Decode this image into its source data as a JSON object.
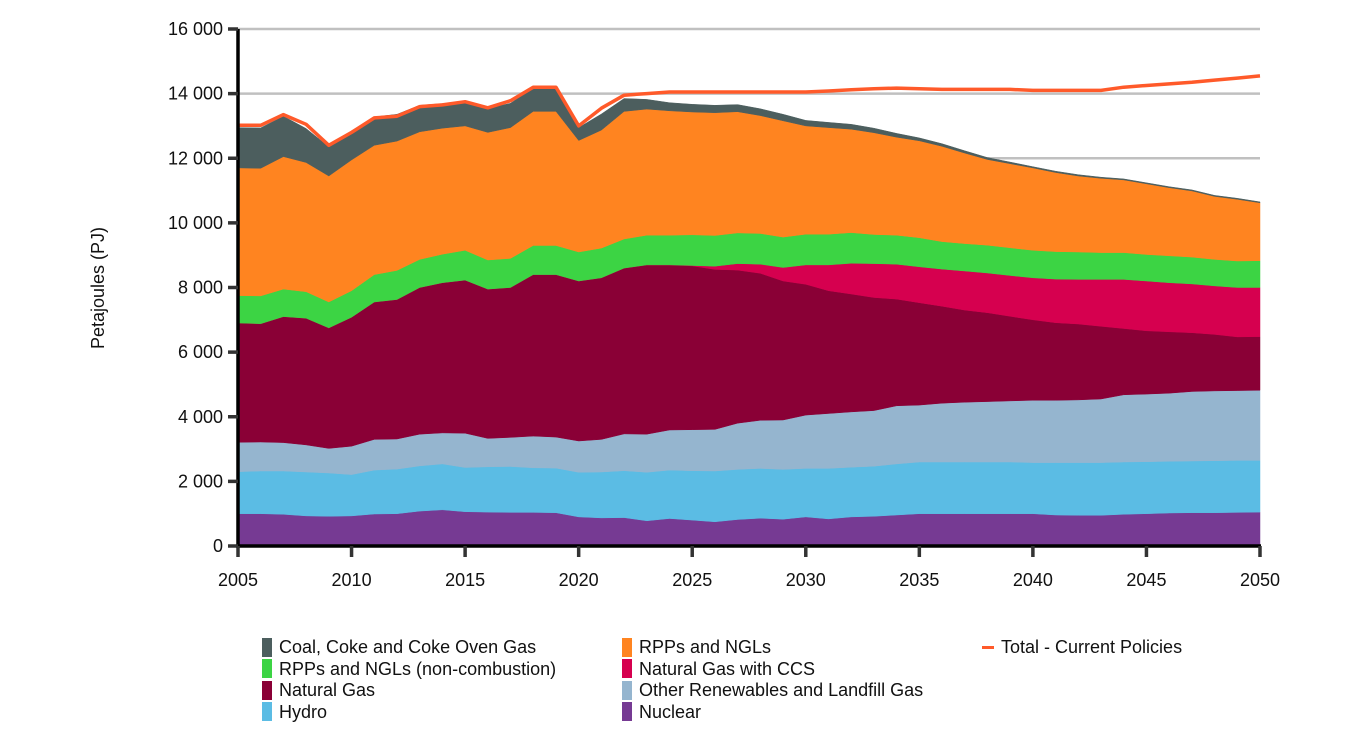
{
  "chart_data": {
    "type": "area",
    "stacked": true,
    "title": "",
    "xlabel": "",
    "ylabel": "Petajoules (PJ)",
    "xlim": [
      2005,
      2050
    ],
    "ylim": [
      0,
      16000
    ],
    "yticks": [
      0,
      2000,
      4000,
      6000,
      8000,
      10000,
      12000,
      14000,
      16000
    ],
    "ytick_labels": [
      "0",
      "2 000",
      "4 000",
      "6 000",
      "8 000",
      "10 000",
      "12 000",
      "14 000",
      "16 000"
    ],
    "xticks": [
      2005,
      2010,
      2015,
      2020,
      2025,
      2030,
      2035,
      2040,
      2045,
      2050
    ],
    "xtick_labels": [
      "2005",
      "2010",
      "2015",
      "2020",
      "2025",
      "2030",
      "2035",
      "2040",
      "2045",
      "2050"
    ],
    "grid": "horizontal",
    "legend_position": "bottom",
    "x": [
      2005,
      2006,
      2007,
      2008,
      2009,
      2010,
      2011,
      2012,
      2013,
      2014,
      2015,
      2016,
      2017,
      2018,
      2019,
      2020,
      2021,
      2022,
      2023,
      2024,
      2025,
      2026,
      2027,
      2028,
      2029,
      2030,
      2031,
      2032,
      2033,
      2034,
      2035,
      2036,
      2037,
      2038,
      2039,
      2040,
      2041,
      2042,
      2043,
      2044,
      2045,
      2046,
      2047,
      2048,
      2049,
      2050
    ],
    "series": [
      {
        "name": "Nuclear",
        "color": "#763A93",
        "values": [
          1000,
          1000,
          980,
          930,
          920,
          930,
          990,
          1000,
          1080,
          1120,
          1060,
          1050,
          1040,
          1040,
          1030,
          900,
          870,
          880,
          780,
          850,
          800,
          750,
          820,
          860,
          830,
          900,
          840,
          900,
          920,
          960,
          1000,
          1000,
          1000,
          1000,
          1000,
          1000,
          960,
          950,
          950,
          980,
          1000,
          1020,
          1030,
          1030,
          1040,
          1050
        ]
      },
      {
        "name": "Hydro",
        "color": "#5BBCE4",
        "values": [
          1300,
          1320,
          1340,
          1360,
          1340,
          1280,
          1360,
          1380,
          1400,
          1420,
          1370,
          1400,
          1420,
          1380,
          1380,
          1380,
          1420,
          1450,
          1500,
          1500,
          1530,
          1570,
          1550,
          1540,
          1540,
          1500,
          1560,
          1540,
          1550,
          1580,
          1600,
          1600,
          1600,
          1600,
          1600,
          1580,
          1620,
          1630,
          1630,
          1620,
          1610,
          1600,
          1600,
          1610,
          1610,
          1600
        ]
      },
      {
        "name": "Other Renewables and Landfill Gas",
        "color": "#95B5CF",
        "values": [
          910,
          900,
          880,
          840,
          760,
          880,
          950,
          930,
          980,
          960,
          1060,
          880,
          900,
          980,
          960,
          970,
          1010,
          1140,
          1180,
          1240,
          1270,
          1290,
          1430,
          1490,
          1530,
          1650,
          1700,
          1710,
          1720,
          1800,
          1760,
          1820,
          1850,
          1870,
          1890,
          1930,
          1930,
          1940,
          1970,
          2080,
          2090,
          2110,
          2150,
          2160,
          2160,
          2170
        ]
      },
      {
        "name": "Natural Gas",
        "color": "#8A0036",
        "values": [
          3690,
          3660,
          3900,
          3920,
          3730,
          3990,
          4250,
          4320,
          4540,
          4650,
          4740,
          4620,
          4640,
          5000,
          5030,
          4950,
          5000,
          5130,
          5240,
          5110,
          5070,
          4950,
          4740,
          4550,
          4300,
          4050,
          3800,
          3650,
          3500,
          3300,
          3170,
          3000,
          2850,
          2750,
          2620,
          2490,
          2400,
          2350,
          2250,
          2050,
          1960,
          1900,
          1820,
          1750,
          1660,
          1660
        ]
      },
      {
        "name": "Natural Gas with CCS",
        "color": "#D6004F",
        "values": [
          0,
          0,
          0,
          0,
          0,
          0,
          0,
          0,
          0,
          0,
          0,
          0,
          0,
          0,
          0,
          0,
          0,
          0,
          0,
          0,
          10,
          100,
          200,
          280,
          420,
          600,
          800,
          950,
          1050,
          1080,
          1110,
          1150,
          1210,
          1230,
          1260,
          1300,
          1350,
          1380,
          1450,
          1520,
          1540,
          1520,
          1510,
          1500,
          1530,
          1520
        ]
      },
      {
        "name": "RPPs and NGLs (non-combustion)",
        "color": "#3CD444",
        "values": [
          850,
          860,
          850,
          820,
          800,
          820,
          850,
          900,
          870,
          880,
          920,
          900,
          900,
          900,
          900,
          900,
          920,
          900,
          920,
          920,
          950,
          950,
          950,
          950,
          940,
          950,
          950,
          950,
          900,
          900,
          900,
          850,
          850,
          860,
          860,
          850,
          850,
          850,
          830,
          830,
          820,
          830,
          830,
          820,
          820,
          830
        ]
      },
      {
        "name": "RPPs and NGLs",
        "color": "#FF8420",
        "values": [
          3950,
          3950,
          4100,
          4000,
          3900,
          4050,
          4000,
          4000,
          3950,
          3900,
          3850,
          3950,
          4050,
          4150,
          4150,
          3450,
          3650,
          3950,
          3900,
          3850,
          3800,
          3800,
          3750,
          3650,
          3600,
          3350,
          3300,
          3200,
          3150,
          3030,
          3000,
          2950,
          2800,
          2650,
          2600,
          2550,
          2450,
          2350,
          2300,
          2250,
          2190,
          2110,
          2050,
          1950,
          1910,
          1790
        ]
      },
      {
        "name": "Coal, Coke and Coke Oven Gas",
        "color": "#4C5E5E",
        "values": [
          1250,
          1250,
          1250,
          1050,
          900,
          800,
          880,
          830,
          820,
          760,
          730,
          740,
          750,
          720,
          700,
          400,
          500,
          400,
          300,
          250,
          240,
          230,
          220,
          210,
          200,
          170,
          160,
          150,
          140,
          120,
          90,
          80,
          70,
          60,
          50,
          40,
          40,
          40,
          35,
          30,
          30,
          30,
          30,
          30,
          30,
          30
        ]
      }
    ],
    "lines": [
      {
        "name": "Total - Current Policies",
        "color": "#FF5A2A",
        "values": [
          13020,
          13020,
          13350,
          13050,
          12400,
          12800,
          13250,
          13300,
          13600,
          13650,
          13750,
          13560,
          13780,
          14200,
          14200,
          13000,
          13550,
          13950,
          14000,
          14050,
          14050,
          14050,
          14050,
          14050,
          14050,
          14050,
          14080,
          14120,
          14150,
          14170,
          14150,
          14130,
          14130,
          14130,
          14130,
          14100,
          14100,
          14100,
          14100,
          14200,
          14250,
          14300,
          14350,
          14420,
          14480,
          14550
        ]
      }
    ],
    "legend": [
      {
        "label": "Coal, Coke and Coke Oven Gas",
        "color": "#4C5E5E",
        "kind": "box"
      },
      {
        "label": "RPPs and NGLs",
        "color": "#FF8420",
        "kind": "box"
      },
      {
        "label": "Total - Current Policies",
        "color": "#FF5A2A",
        "kind": "line"
      },
      {
        "label": "RPPs and NGLs (non-combustion)",
        "color": "#3CD444",
        "kind": "box"
      },
      {
        "label": "Natural Gas with CCS",
        "color": "#D6004F",
        "kind": "box"
      },
      {
        "label": "Natural Gas",
        "color": "#8A0036",
        "kind": "box"
      },
      {
        "label": "Other Renewables and Landfill Gas",
        "color": "#95B5CF",
        "kind": "box"
      },
      {
        "label": "Hydro",
        "color": "#5BBCE4",
        "kind": "box"
      },
      {
        "label": "Nuclear",
        "color": "#763A93",
        "kind": "box"
      }
    ]
  }
}
